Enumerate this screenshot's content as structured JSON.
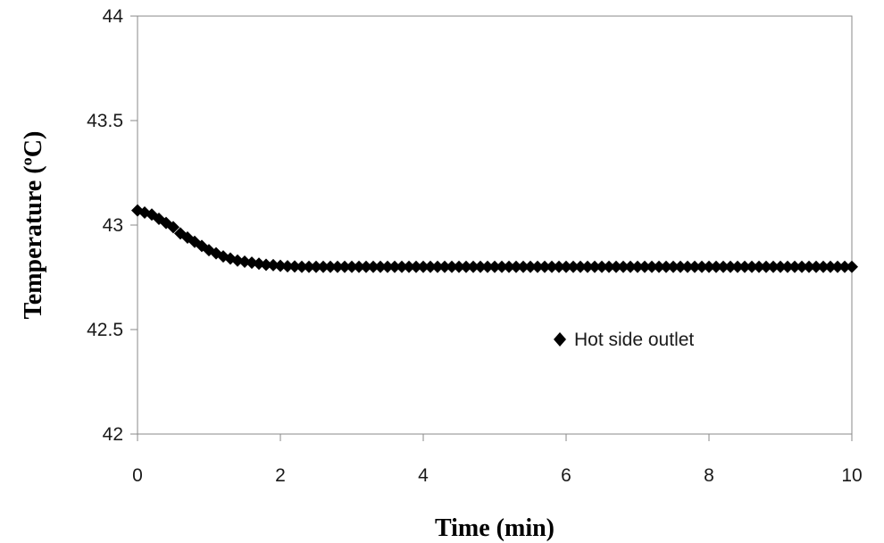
{
  "chart_data": {
    "type": "scatter",
    "title": "",
    "xlabel": "Time (min)",
    "ylabel": "Temperature (ºC)",
    "xlim": [
      0,
      10
    ],
    "ylim": [
      42,
      44
    ],
    "x_ticks": [
      "0",
      "2",
      "4",
      "6",
      "8",
      "10"
    ],
    "y_ticks": [
      "42",
      "42.5",
      "43",
      "43.5",
      "44"
    ],
    "grid": false,
    "legend_position": "center-right",
    "marker": "diamond",
    "marker_color": "#000000",
    "series": [
      {
        "name": "Hot side outlet",
        "x_start": 0,
        "x_end": 10,
        "x_step": 0.1,
        "y": [
          43.07,
          43.06,
          43.05,
          43.03,
          43.01,
          42.99,
          42.96,
          42.94,
          42.92,
          42.9,
          42.88,
          42.865,
          42.85,
          42.84,
          42.83,
          42.825,
          42.82,
          42.815,
          42.81,
          42.808,
          42.805,
          42.803,
          42.802,
          42.8,
          42.8,
          42.8,
          42.8,
          42.8,
          42.8,
          42.8,
          42.8,
          42.8,
          42.8,
          42.8,
          42.8,
          42.8,
          42.8,
          42.8,
          42.8,
          42.8,
          42.8,
          42.8,
          42.8,
          42.8,
          42.8,
          42.8,
          42.8,
          42.8,
          42.8,
          42.8,
          42.8,
          42.8,
          42.8,
          42.8,
          42.8,
          42.8,
          42.8,
          42.8,
          42.8,
          42.8,
          42.8,
          42.8,
          42.8,
          42.8,
          42.8,
          42.8,
          42.8,
          42.8,
          42.8,
          42.8,
          42.8,
          42.8,
          42.8,
          42.8,
          42.8,
          42.8,
          42.8,
          42.8,
          42.8,
          42.8,
          42.8,
          42.8,
          42.8,
          42.8,
          42.8,
          42.8,
          42.8,
          42.8,
          42.8,
          42.8,
          42.8,
          42.8,
          42.8,
          42.8,
          42.8,
          42.8,
          42.8,
          42.8,
          42.8,
          42.8,
          42.8
        ]
      }
    ]
  }
}
